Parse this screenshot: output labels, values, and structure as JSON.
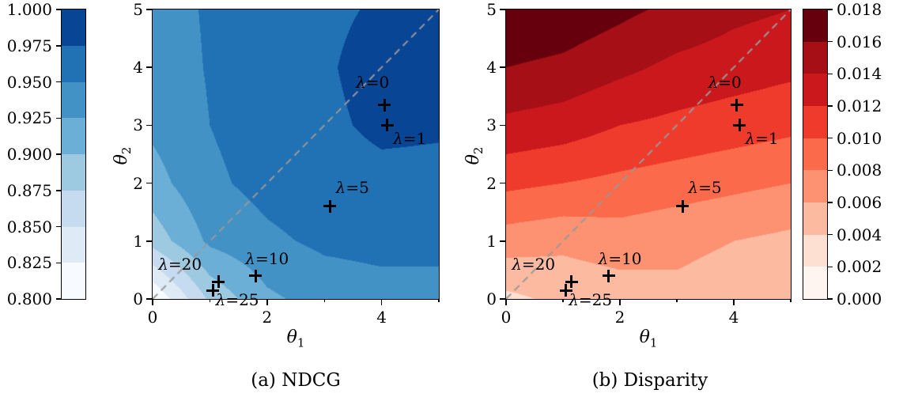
{
  "chart_data": [
    {
      "type": "contour",
      "panel": "a",
      "title": "(a) NDCG",
      "xlabel": "θ1",
      "ylabel": "θ2",
      "xlim": [
        0,
        5
      ],
      "ylim": [
        0,
        5
      ],
      "x_major_ticks": [
        0,
        2,
        4
      ],
      "x_minor_ticks": [
        1,
        3,
        5
      ],
      "y_major_ticks": [
        0,
        1,
        2,
        3,
        4,
        5
      ],
      "levels": [
        0.8,
        0.825,
        0.85,
        0.875,
        0.9,
        0.925,
        0.95,
        0.975,
        1.0
      ],
      "band_colors": [
        "#f7fbff",
        "#deebf7",
        "#c6dbef",
        "#9ecae1",
        "#6baed6",
        "#4292c6",
        "#2171b5",
        "#084594"
      ],
      "colorbar": {
        "side": "left",
        "tick_labels_bottom_to_top": [
          "0.800",
          "0.825",
          "0.850",
          "0.875",
          "0.900",
          "0.925",
          "0.950",
          "0.975",
          "1.000"
        ]
      },
      "grid": {
        "x": [
          0,
          1,
          2,
          3,
          4,
          5
        ],
        "y": [
          0,
          1,
          2,
          3,
          4,
          5
        ],
        "values": [
          [
            0.8,
            0.88,
            0.92,
            0.935,
            0.94,
            0.94
          ],
          [
            0.885,
            0.93,
            0.945,
            0.955,
            0.958,
            0.958
          ],
          [
            0.915,
            0.945,
            0.958,
            0.965,
            0.968,
            0.968
          ],
          [
            0.93,
            0.95,
            0.962,
            0.97,
            0.98,
            0.978
          ],
          [
            0.935,
            0.952,
            0.963,
            0.972,
            0.985,
            0.982
          ],
          [
            0.938,
            0.953,
            0.963,
            0.97,
            0.978,
            0.976
          ]
        ]
      },
      "diagonal_line": {
        "from": [
          0,
          0
        ],
        "to": [
          5,
          5
        ],
        "style": "dashed",
        "color": "#999999"
      },
      "annotations": [
        {
          "label": "λ=0",
          "x": 4.05,
          "y": 3.35,
          "label_x": 3.55,
          "label_y": 3.75
        },
        {
          "label": "λ=1",
          "x": 4.1,
          "y": 3.0,
          "label_x": 4.2,
          "label_y": 2.78
        },
        {
          "label": "λ=5",
          "x": 3.1,
          "y": 1.6,
          "label_x": 3.2,
          "label_y": 1.93
        },
        {
          "label": "λ=10",
          "x": 1.8,
          "y": 0.4,
          "label_x": 1.62,
          "label_y": 0.7
        },
        {
          "label": "λ=20",
          "x": 1.15,
          "y": 0.3,
          "label_x": 0.1,
          "label_y": 0.6
        },
        {
          "label": "λ=25",
          "x": 1.05,
          "y": 0.15,
          "label_x": 1.1,
          "label_y": -0.02
        }
      ]
    },
    {
      "type": "contour",
      "panel": "b",
      "title": "(b) Disparity",
      "xlabel": "θ1",
      "ylabel": "θ2",
      "xlim": [
        0,
        5
      ],
      "ylim": [
        0,
        5
      ],
      "x_major_ticks": [
        0,
        2,
        4
      ],
      "x_minor_ticks": [
        1,
        3,
        5
      ],
      "y_major_ticks": [
        0,
        1,
        2,
        3,
        4,
        5
      ],
      "levels": [
        0.0,
        0.002,
        0.004,
        0.006,
        0.008,
        0.01,
        0.012,
        0.014,
        0.016,
        0.018
      ],
      "band_colors": [
        "#fff5f0",
        "#fee0d2",
        "#fcbba1",
        "#fc9272",
        "#fb6a4a",
        "#ef3b2c",
        "#cb181d",
        "#a50f15",
        "#67000d"
      ],
      "colorbar": {
        "side": "right",
        "tick_labels_bottom_to_top": [
          "0.000",
          "0.002",
          "0.004",
          "0.006",
          "0.008",
          "0.010",
          "0.012",
          "0.014",
          "0.016",
          "0.018"
        ]
      },
      "grid": {
        "x": [
          0,
          1,
          2,
          3,
          4,
          5
        ],
        "y": [
          0,
          1,
          2,
          3,
          4,
          5
        ],
        "values": [
          [
            0.0035,
            0.0045,
            0.005,
            0.0055,
            0.005,
            0.0045
          ],
          [
            0.007,
            0.0065,
            0.007,
            0.0065,
            0.006,
            0.0055
          ],
          [
            0.0105,
            0.01,
            0.0095,
            0.009,
            0.0085,
            0.008
          ],
          [
            0.0135,
            0.013,
            0.012,
            0.0115,
            0.011,
            0.0105
          ],
          [
            0.016,
            0.0155,
            0.0145,
            0.0135,
            0.013,
            0.0125
          ],
          [
            0.018,
            0.0175,
            0.0165,
            0.0155,
            0.0145,
            0.014
          ]
        ]
      },
      "diagonal_line": {
        "from": [
          0,
          0
        ],
        "to": [
          5,
          5
        ],
        "style": "dashed",
        "color": "#999999"
      },
      "annotations": [
        {
          "label": "λ=0",
          "x": 4.05,
          "y": 3.35,
          "label_x": 3.55,
          "label_y": 3.75
        },
        {
          "label": "λ=1",
          "x": 4.1,
          "y": 3.0,
          "label_x": 4.2,
          "label_y": 2.78
        },
        {
          "label": "λ=5",
          "x": 3.1,
          "y": 1.6,
          "label_x": 3.2,
          "label_y": 1.93
        },
        {
          "label": "λ=10",
          "x": 1.8,
          "y": 0.4,
          "label_x": 1.62,
          "label_y": 0.7
        },
        {
          "label": "λ=20",
          "x": 1.15,
          "y": 0.3,
          "label_x": 0.1,
          "label_y": 0.6
        },
        {
          "label": "λ=25",
          "x": 1.05,
          "y": 0.15,
          "label_x": 1.1,
          "label_y": -0.02
        }
      ]
    }
  ]
}
